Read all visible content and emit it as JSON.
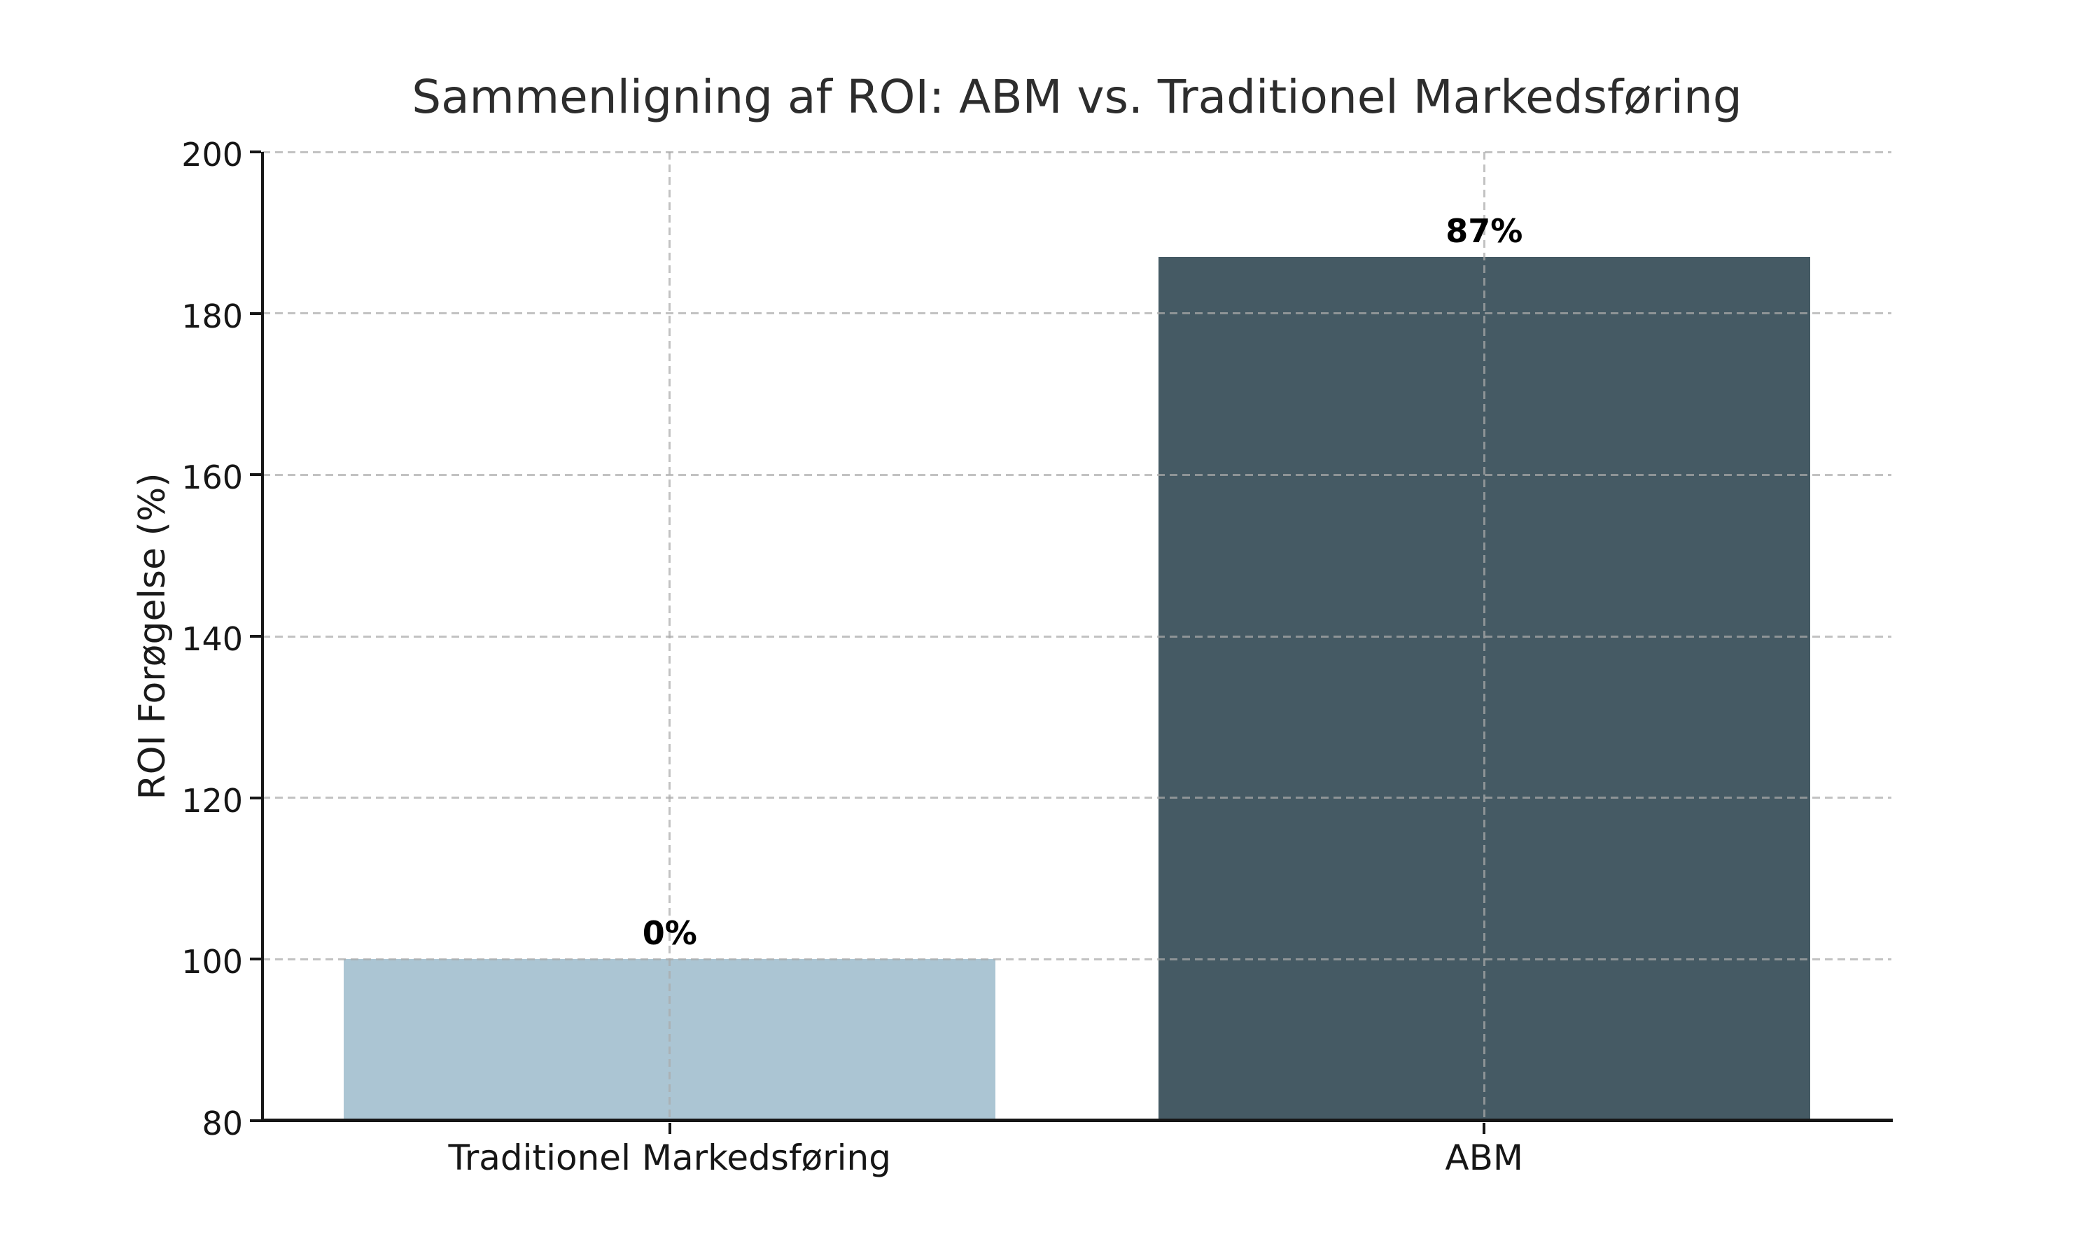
{
  "chart_data": {
    "type": "bar",
    "title": "Sammenligning af ROI: ABM vs. Traditionel Markedsføring",
    "xlabel": "",
    "ylabel": "ROI Forøgelse (%)",
    "categories": [
      "Traditionel Markedsføring",
      "ABM"
    ],
    "values": [
      100,
      187
    ],
    "bar_labels": [
      "0%",
      "87%"
    ],
    "bar_colors": [
      "#abc5d3",
      "#455a64"
    ],
    "ylim": [
      80,
      200
    ],
    "yticks": [
      80,
      100,
      120,
      140,
      160,
      180,
      200
    ],
    "bar_width_fraction": 0.8,
    "grid": "dashed, horizontal at y-ticks and vertical at bar centers, drawn over bars",
    "legend_position": "none"
  }
}
